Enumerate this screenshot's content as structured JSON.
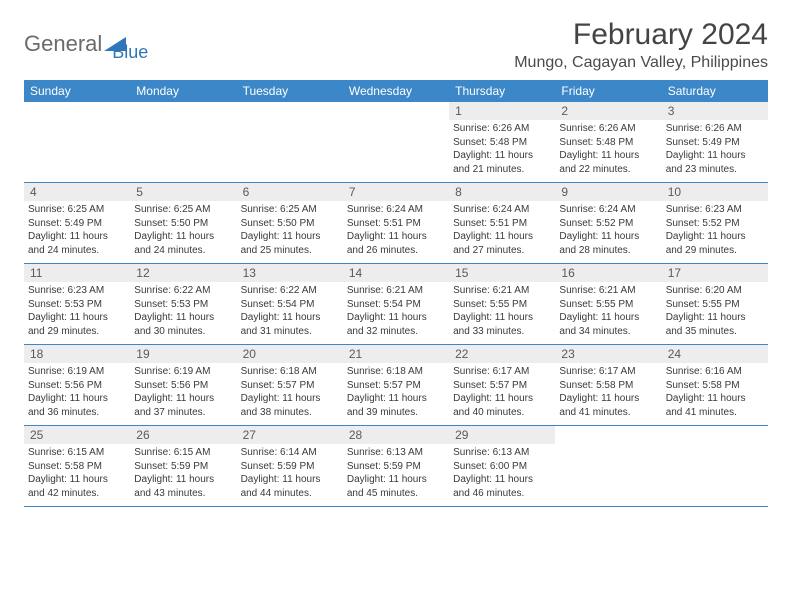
{
  "logo": {
    "text1": "General",
    "text2": "Blue"
  },
  "title": "February 2024",
  "location": "Mungo, Cagayan Valley, Philippines",
  "colors": {
    "header_bg": "#3b87c8",
    "header_text": "#ffffff",
    "daynum_bg": "#ededed",
    "daynum_text": "#5a5a5a",
    "body_text": "#3a3a3a",
    "rule": "#3b87c8",
    "logo_gray": "#6b6b6b",
    "logo_blue": "#2f77b8"
  },
  "day_headers": [
    "Sunday",
    "Monday",
    "Tuesday",
    "Wednesday",
    "Thursday",
    "Friday",
    "Saturday"
  ],
  "weeks": [
    [
      null,
      null,
      null,
      null,
      {
        "num": "1",
        "sunrise": "6:26 AM",
        "sunset": "5:48 PM",
        "daylight": "11 hours and 21 minutes."
      },
      {
        "num": "2",
        "sunrise": "6:26 AM",
        "sunset": "5:48 PM",
        "daylight": "11 hours and 22 minutes."
      },
      {
        "num": "3",
        "sunrise": "6:26 AM",
        "sunset": "5:49 PM",
        "daylight": "11 hours and 23 minutes."
      }
    ],
    [
      {
        "num": "4",
        "sunrise": "6:25 AM",
        "sunset": "5:49 PM",
        "daylight": "11 hours and 24 minutes."
      },
      {
        "num": "5",
        "sunrise": "6:25 AM",
        "sunset": "5:50 PM",
        "daylight": "11 hours and 24 minutes."
      },
      {
        "num": "6",
        "sunrise": "6:25 AM",
        "sunset": "5:50 PM",
        "daylight": "11 hours and 25 minutes."
      },
      {
        "num": "7",
        "sunrise": "6:24 AM",
        "sunset": "5:51 PM",
        "daylight": "11 hours and 26 minutes."
      },
      {
        "num": "8",
        "sunrise": "6:24 AM",
        "sunset": "5:51 PM",
        "daylight": "11 hours and 27 minutes."
      },
      {
        "num": "9",
        "sunrise": "6:24 AM",
        "sunset": "5:52 PM",
        "daylight": "11 hours and 28 minutes."
      },
      {
        "num": "10",
        "sunrise": "6:23 AM",
        "sunset": "5:52 PM",
        "daylight": "11 hours and 29 minutes."
      }
    ],
    [
      {
        "num": "11",
        "sunrise": "6:23 AM",
        "sunset": "5:53 PM",
        "daylight": "11 hours and 29 minutes."
      },
      {
        "num": "12",
        "sunrise": "6:22 AM",
        "sunset": "5:53 PM",
        "daylight": "11 hours and 30 minutes."
      },
      {
        "num": "13",
        "sunrise": "6:22 AM",
        "sunset": "5:54 PM",
        "daylight": "11 hours and 31 minutes."
      },
      {
        "num": "14",
        "sunrise": "6:21 AM",
        "sunset": "5:54 PM",
        "daylight": "11 hours and 32 minutes."
      },
      {
        "num": "15",
        "sunrise": "6:21 AM",
        "sunset": "5:55 PM",
        "daylight": "11 hours and 33 minutes."
      },
      {
        "num": "16",
        "sunrise": "6:21 AM",
        "sunset": "5:55 PM",
        "daylight": "11 hours and 34 minutes."
      },
      {
        "num": "17",
        "sunrise": "6:20 AM",
        "sunset": "5:55 PM",
        "daylight": "11 hours and 35 minutes."
      }
    ],
    [
      {
        "num": "18",
        "sunrise": "6:19 AM",
        "sunset": "5:56 PM",
        "daylight": "11 hours and 36 minutes."
      },
      {
        "num": "19",
        "sunrise": "6:19 AM",
        "sunset": "5:56 PM",
        "daylight": "11 hours and 37 minutes."
      },
      {
        "num": "20",
        "sunrise": "6:18 AM",
        "sunset": "5:57 PM",
        "daylight": "11 hours and 38 minutes."
      },
      {
        "num": "21",
        "sunrise": "6:18 AM",
        "sunset": "5:57 PM",
        "daylight": "11 hours and 39 minutes."
      },
      {
        "num": "22",
        "sunrise": "6:17 AM",
        "sunset": "5:57 PM",
        "daylight": "11 hours and 40 minutes."
      },
      {
        "num": "23",
        "sunrise": "6:17 AM",
        "sunset": "5:58 PM",
        "daylight": "11 hours and 41 minutes."
      },
      {
        "num": "24",
        "sunrise": "6:16 AM",
        "sunset": "5:58 PM",
        "daylight": "11 hours and 41 minutes."
      }
    ],
    [
      {
        "num": "25",
        "sunrise": "6:15 AM",
        "sunset": "5:58 PM",
        "daylight": "11 hours and 42 minutes."
      },
      {
        "num": "26",
        "sunrise": "6:15 AM",
        "sunset": "5:59 PM",
        "daylight": "11 hours and 43 minutes."
      },
      {
        "num": "27",
        "sunrise": "6:14 AM",
        "sunset": "5:59 PM",
        "daylight": "11 hours and 44 minutes."
      },
      {
        "num": "28",
        "sunrise": "6:13 AM",
        "sunset": "5:59 PM",
        "daylight": "11 hours and 45 minutes."
      },
      {
        "num": "29",
        "sunrise": "6:13 AM",
        "sunset": "6:00 PM",
        "daylight": "11 hours and 46 minutes."
      },
      null,
      null
    ]
  ],
  "labels": {
    "sunrise": "Sunrise:",
    "sunset": "Sunset:",
    "daylight": "Daylight:"
  }
}
